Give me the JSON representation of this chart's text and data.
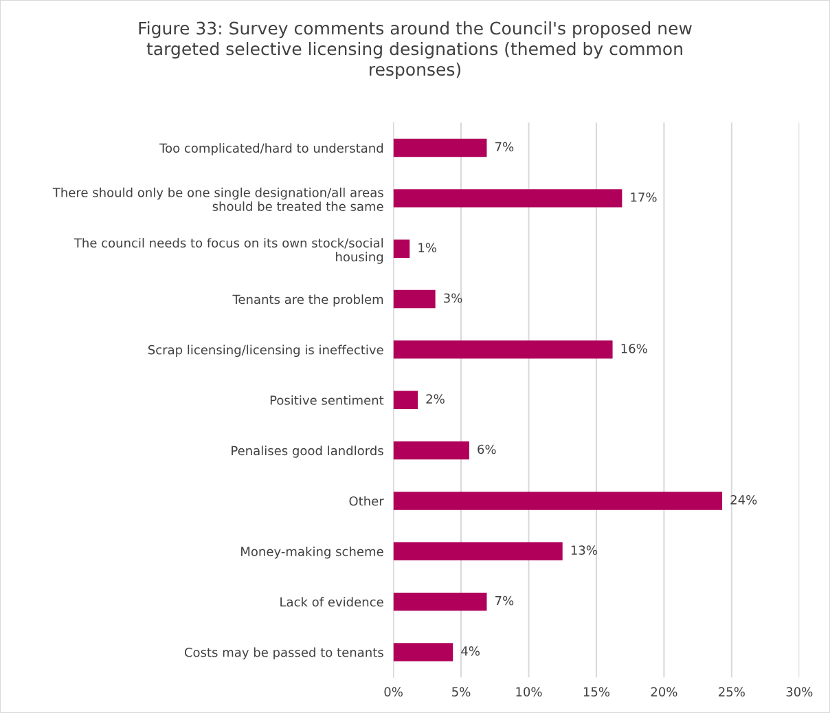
{
  "chart_data": {
    "type": "bar",
    "orientation": "horizontal",
    "title": "Figure 33: Survey comments around the Council's proposed new\ntargeted selective licensing designations (themed by common\nresponses)",
    "categories": [
      "Too complicated/hard to understand",
      "There should only be one single designation/all areas\nshould be treated the same",
      "The council needs to focus on its own stock/social\nhousing",
      "Tenants are the problem",
      "Scrap licensing/licensing is ineffective",
      "Positive sentiment",
      "Penalises good landlords",
      "Other",
      "Money-making scheme",
      "Lack of evidence",
      "Costs may be passed to tenants"
    ],
    "values": [
      6.9,
      16.9,
      1.2,
      3.1,
      16.2,
      1.8,
      5.6,
      24.3,
      12.5,
      6.9,
      4.4
    ],
    "value_labels": [
      "7%",
      "17%",
      "1%",
      "3%",
      "16%",
      "2%",
      "6%",
      "24%",
      "13%",
      "7%",
      "4%"
    ],
    "color": "#b0005a",
    "xlim": [
      0,
      30
    ],
    "xticks": [
      {
        "value": 0,
        "label": "0%"
      },
      {
        "value": 5,
        "label": "5%"
      },
      {
        "value": 10,
        "label": "10%"
      },
      {
        "value": 15,
        "label": "15%"
      },
      {
        "value": 20,
        "label": "20%"
      },
      {
        "value": 25,
        "label": "25%"
      },
      {
        "value": 30,
        "label": "30%"
      }
    ],
    "grid": "x"
  }
}
